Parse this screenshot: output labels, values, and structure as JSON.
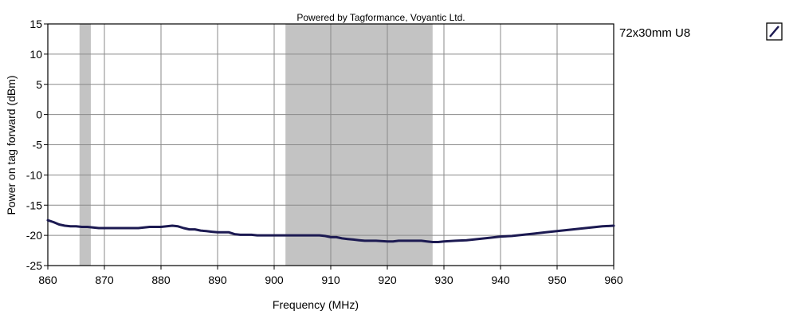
{
  "chart_data": {
    "type": "line",
    "title": "Powered by Tagformance, Voyantic Ltd.",
    "xlabel": "Frequency (MHz)",
    "ylabel": "Power on tag forward (dBm)",
    "xlim": [
      860,
      960
    ],
    "ylim": [
      -25,
      15
    ],
    "x_ticks": [
      860,
      870,
      880,
      890,
      900,
      910,
      920,
      930,
      940,
      950,
      960
    ],
    "y_ticks": [
      15,
      10,
      5,
      0,
      -5,
      -10,
      -15,
      -20,
      -25
    ],
    "grid": true,
    "legend_position": "top-right",
    "shaded_bands": [
      {
        "x_start": 865.6,
        "x_end": 867.6
      },
      {
        "x_start": 902,
        "x_end": 928
      }
    ],
    "series": [
      {
        "name": "72x30mm U8",
        "color": "#1c1a52",
        "x": [
          860,
          861,
          862,
          863,
          864,
          865,
          866,
          867,
          868,
          869,
          870,
          872,
          874,
          876,
          878,
          880,
          882,
          883,
          884,
          885,
          886,
          887,
          888,
          889,
          890,
          892,
          893,
          894,
          895,
          896,
          897,
          898,
          900,
          902,
          904,
          906,
          908,
          909,
          910,
          911,
          912,
          913,
          914,
          915,
          916,
          918,
          920,
          921,
          922,
          924,
          926,
          927,
          928,
          929,
          930,
          932,
          934,
          936,
          938,
          940,
          942,
          944,
          946,
          948,
          950,
          952,
          954,
          956,
          958,
          960
        ],
        "y": [
          -17.5,
          -17.8,
          -18.2,
          -18.4,
          -18.5,
          -18.5,
          -18.6,
          -18.6,
          -18.7,
          -18.8,
          -18.8,
          -18.8,
          -18.8,
          -18.8,
          -18.6,
          -18.6,
          -18.4,
          -18.5,
          -18.8,
          -19.0,
          -19.0,
          -19.2,
          -19.3,
          -19.4,
          -19.5,
          -19.5,
          -19.8,
          -19.9,
          -19.9,
          -19.9,
          -20.0,
          -20.0,
          -20.0,
          -20.0,
          -20.0,
          -20.0,
          -20.0,
          -20.1,
          -20.3,
          -20.3,
          -20.5,
          -20.6,
          -20.7,
          -20.8,
          -20.9,
          -20.9,
          -21.0,
          -21.0,
          -20.9,
          -20.9,
          -20.9,
          -21.0,
          -21.1,
          -21.1,
          -21.0,
          -20.9,
          -20.8,
          -20.6,
          -20.4,
          -20.2,
          -20.1,
          -19.9,
          -19.7,
          -19.5,
          -19.3,
          -19.1,
          -18.9,
          -18.7,
          -18.5,
          -18.4
        ]
      }
    ]
  }
}
